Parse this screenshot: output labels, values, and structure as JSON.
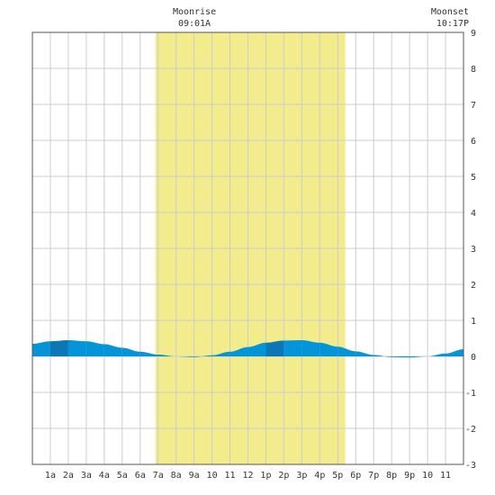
{
  "chart_data": {
    "type": "area",
    "title": "",
    "xlabel": "",
    "ylabel": "",
    "xlim": [
      0,
      24
    ],
    "ylim": [
      -3,
      9
    ],
    "x_tick_labels": [
      "1a",
      "2a",
      "3a",
      "4a",
      "5a",
      "6a",
      "7a",
      "8a",
      "9a",
      "10",
      "11",
      "12",
      "1p",
      "2p",
      "3p",
      "4p",
      "5p",
      "6p",
      "7p",
      "8p",
      "9p",
      "10",
      "11"
    ],
    "y_ticks": [
      -3,
      -2,
      -1,
      0,
      1,
      2,
      3,
      4,
      5,
      6,
      7,
      8,
      9
    ],
    "grid": true,
    "daylight": {
      "start_hour": 6.85,
      "end_hour": 17.42,
      "color": "#f2ec8c"
    },
    "moon": [
      {
        "label": "Moonrise",
        "time": "09:01A",
        "hour": 9.02
      },
      {
        "label": "Moonset",
        "time": "10:17P",
        "hour": 22.28
      }
    ],
    "series": [
      {
        "x": [
          0,
          1,
          2,
          3,
          4,
          5,
          6,
          7,
          8,
          9,
          10,
          11,
          12,
          13,
          14,
          15,
          16,
          17,
          18,
          19,
          20,
          21,
          22,
          23,
          24
        ],
        "values": [
          0.35,
          0.42,
          0.45,
          0.42,
          0.34,
          0.24,
          0.13,
          0.05,
          0.0,
          -0.02,
          0.03,
          0.13,
          0.26,
          0.38,
          0.44,
          0.45,
          0.38,
          0.27,
          0.14,
          0.04,
          -0.02,
          -0.03,
          0.0,
          0.08,
          0.2
        ]
      }
    ],
    "colors": {
      "fill_light": "#0494d8",
      "fill_dark": "#0b77b5",
      "grid": "#cccccc",
      "frame": "#555555"
    }
  }
}
